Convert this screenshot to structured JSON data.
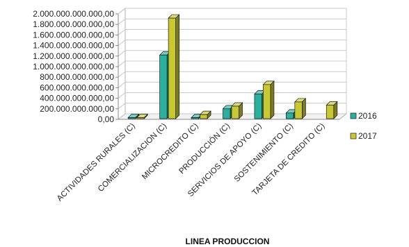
{
  "chart_data": {
    "type": "bar",
    "title": "",
    "xlabel": "LINEA PRODUCCION",
    "ylabel": "",
    "ylim": [
      0,
      2000000000000
    ],
    "y_ticks": [
      "0,00",
      "200.000.000.000,00",
      "400.000.000.000,00",
      "600.000.000.000,00",
      "800.000.000.000,00",
      "1.000.000.000.000,00",
      "1.200.000.000.000,00",
      "1.400.000.000.000,00",
      "1.600.000.000.000,00",
      "1.800.000.000.000,00",
      "2.000.000.000.000,00"
    ],
    "categories": [
      "ACTIVIDADES RURALES (C)",
      "COMERCIALIZACION (C)",
      "MICROCREDITO (C)",
      "PRODUCCIÓN (C)",
      "SERVICIOS DE APOYO  (C)",
      "SOSTENIMIENTO (C)",
      "TARJETA DE CREDITO (C)"
    ],
    "series": [
      {
        "name": "2016",
        "color": "#2bb0a0",
        "values": [
          8000000000,
          1220000000000,
          20000000000,
          200000000000,
          480000000000,
          120000000000,
          0
        ]
      },
      {
        "name": "2017",
        "color": "#c8c832",
        "values": [
          10000000000,
          1920000000000,
          90000000000,
          250000000000,
          660000000000,
          330000000000,
          270000000000
        ]
      }
    ],
    "grid": true,
    "legend": "right",
    "style": "3d-bar"
  }
}
